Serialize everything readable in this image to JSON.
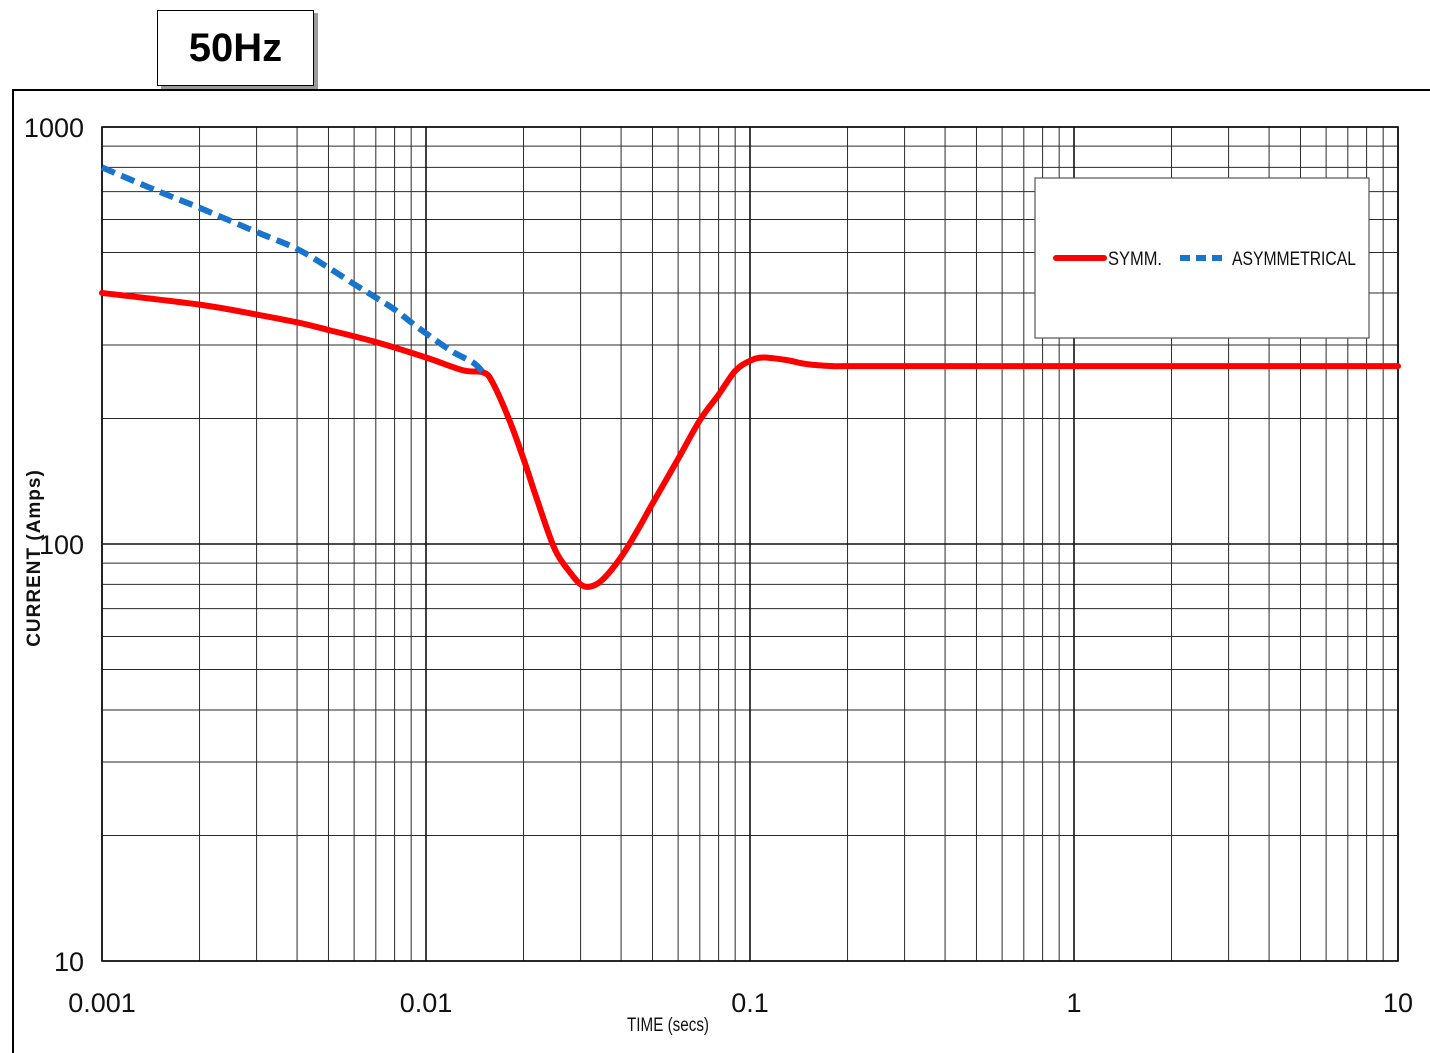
{
  "header": {
    "frequency_label": "50Hz"
  },
  "chart_data": {
    "type": "line",
    "xscale": "log",
    "yscale": "log",
    "xlim": [
      0.001,
      10
    ],
    "ylim": [
      10,
      1000
    ],
    "xlabel": "TIME (secs)",
    "ylabel": "CURRENT (Amps)",
    "x_tick_labels": [
      "0.001",
      "0.01",
      "0.1",
      "1",
      "10"
    ],
    "y_tick_labels": [
      "10",
      "100",
      "1000"
    ],
    "grid": true,
    "legend_position": "top-right",
    "series": [
      {
        "name": "SYMM.",
        "color": "#ff0000",
        "style": "solid",
        "x": [
          0.001,
          0.002,
          0.003,
          0.004,
          0.005,
          0.007,
          0.01,
          0.013,
          0.015,
          0.016,
          0.018,
          0.02,
          0.022,
          0.025,
          0.028,
          0.03,
          0.032,
          0.035,
          0.04,
          0.045,
          0.05,
          0.06,
          0.07,
          0.08,
          0.09,
          0.1,
          0.11,
          0.13,
          0.15,
          0.18,
          0.2,
          0.5,
          1,
          2,
          5,
          10
        ],
        "y": [
          400,
          375,
          355,
          340,
          326,
          305,
          280,
          261,
          258,
          245,
          200,
          160,
          128,
          97,
          85,
          80,
          79,
          82,
          93,
          108,
          125,
          160,
          198,
          228,
          260,
          275,
          280,
          276,
          270,
          267,
          267,
          267,
          267,
          267,
          267,
          267
        ]
      },
      {
        "name": "ASYMMETRICAL",
        "color": "#1874cd",
        "style": "dashed",
        "x": [
          0.001,
          0.0015,
          0.002,
          0.003,
          0.004,
          0.005,
          0.006,
          0.007,
          0.008,
          0.009,
          0.01,
          0.012,
          0.014,
          0.015
        ],
        "y": [
          800,
          700,
          640,
          560,
          510,
          460,
          420,
          390,
          365,
          340,
          320,
          290,
          272,
          258
        ]
      }
    ]
  }
}
